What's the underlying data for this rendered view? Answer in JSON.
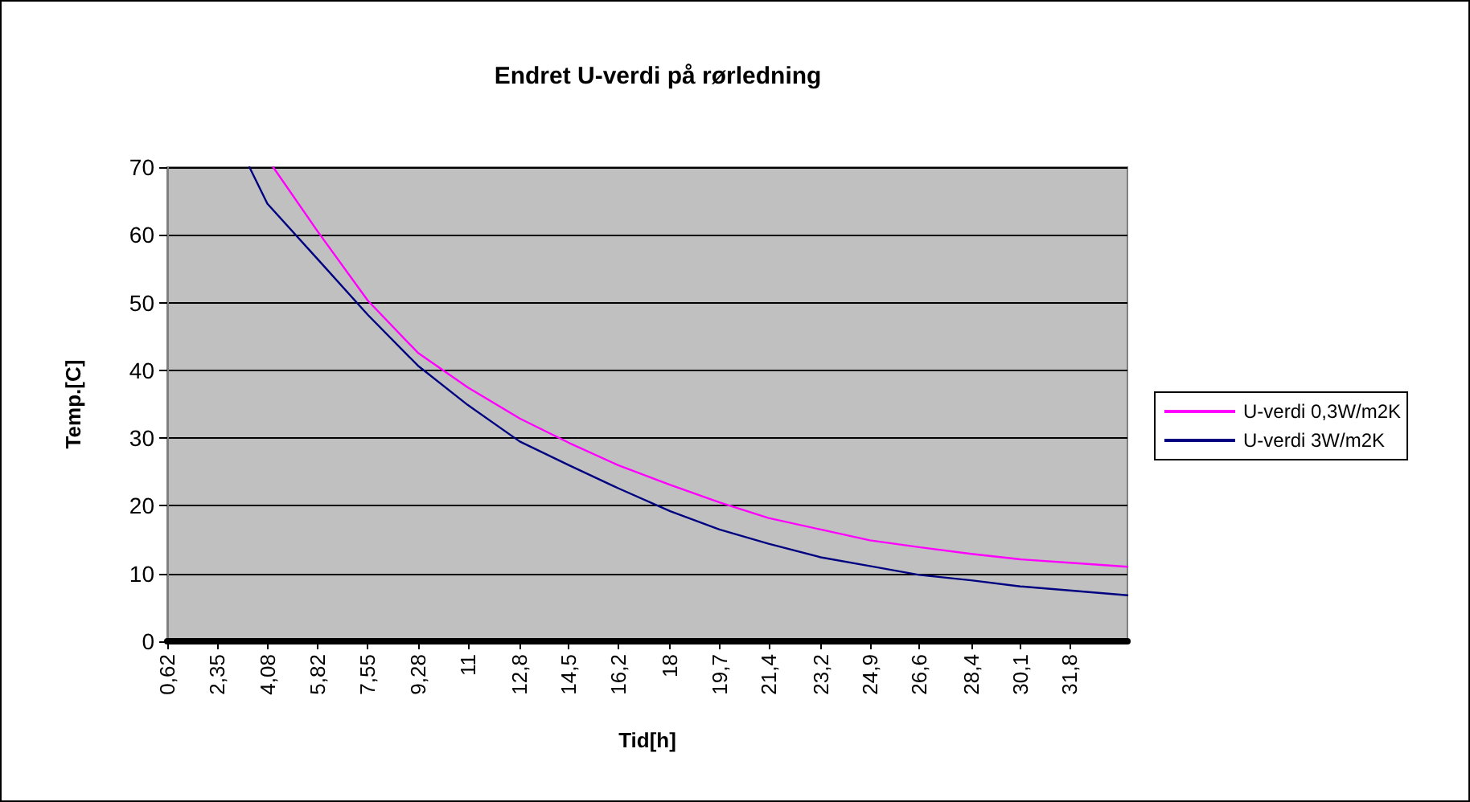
{
  "chart_data": {
    "type": "line",
    "title": "Endret U-verdi på rørledning",
    "xlabel": "Tid[h]",
    "ylabel": "Temp.[C]",
    "xlim": [
      0.62,
      33.8
    ],
    "ylim": [
      0,
      70
    ],
    "yticks": [
      0,
      10,
      20,
      30,
      40,
      50,
      60,
      70
    ],
    "xticks": [
      {
        "value": 0.62,
        "label": "0,62"
      },
      {
        "value": 2.35,
        "label": "2,35"
      },
      {
        "value": 4.08,
        "label": "4,08"
      },
      {
        "value": 5.82,
        "label": "5,82"
      },
      {
        "value": 7.55,
        "label": "7,55"
      },
      {
        "value": 9.28,
        "label": "9,28"
      },
      {
        "value": 11,
        "label": "11"
      },
      {
        "value": 12.8,
        "label": "12,8"
      },
      {
        "value": 14.5,
        "label": "14,5"
      },
      {
        "value": 16.2,
        "label": "16,2"
      },
      {
        "value": 18,
        "label": "18"
      },
      {
        "value": 19.7,
        "label": "19,7"
      },
      {
        "value": 21.4,
        "label": "21,4"
      },
      {
        "value": 23.2,
        "label": "23,2"
      },
      {
        "value": 24.9,
        "label": "24,9"
      },
      {
        "value": 26.6,
        "label": "26,6"
      },
      {
        "value": 28.4,
        "label": "28,4"
      },
      {
        "value": 30.1,
        "label": "30,1"
      },
      {
        "value": 31.8,
        "label": "31,8"
      }
    ],
    "grid": "y",
    "legend": "right",
    "marker": "none",
    "line_style": "solid",
    "series": [
      {
        "name": "U-verdi 0,3W/m2K",
        "color": "#ff00ff",
        "x": [
          4.28,
          5.82,
          7.55,
          9.28,
          11,
          12.8,
          14.5,
          16.2,
          18,
          19.7,
          21.4,
          23.2,
          24.9,
          26.6,
          28.4,
          30.1,
          31.8,
          33.8
        ],
        "values": [
          70,
          60.5,
          50.3,
          42.6,
          37.5,
          32.9,
          29.3,
          26,
          23.1,
          20.5,
          18.2,
          16.5,
          14.9,
          13.9,
          12.9,
          12.1,
          11.6,
          11
        ]
      },
      {
        "name": "U-verdi 3W/m2K",
        "color": "#000080",
        "x": [
          3.46,
          4.08,
          5.82,
          7.55,
          9.28,
          11,
          12.8,
          14.5,
          16.2,
          18,
          19.7,
          21.4,
          23.2,
          24.9,
          26.6,
          28.4,
          30.1,
          31.8,
          33.8
        ],
        "values": [
          70,
          64.6,
          56.4,
          48.2,
          40.7,
          34.9,
          29.5,
          26,
          22.6,
          19.2,
          16.5,
          14.4,
          12.4,
          11.1,
          9.8,
          9,
          8.1,
          7.5,
          6.8
        ]
      }
    ]
  }
}
